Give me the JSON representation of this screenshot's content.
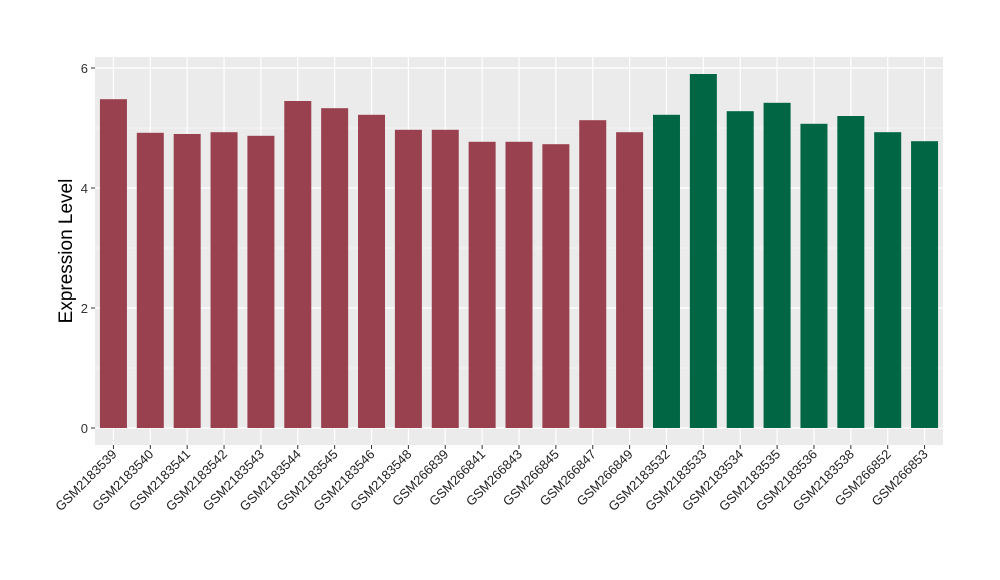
{
  "chart_data": {
    "type": "bar",
    "title": "",
    "xlabel": "",
    "ylabel": "Expression Level",
    "ylim": [
      0,
      6.1
    ],
    "yticks": [
      0,
      2,
      4,
      6
    ],
    "grid": true,
    "categories": [
      "GSM2183539",
      "GSM2183540",
      "GSM2183541",
      "GSM2183542",
      "GSM2183543",
      "GSM2183544",
      "GSM2183545",
      "GSM2183546",
      "GSM2183548",
      "GSM266839",
      "GSM266841",
      "GSM266843",
      "GSM266845",
      "GSM266847",
      "GSM266849",
      "GSM2183532",
      "GSM2183533",
      "GSM2183534",
      "GSM2183535",
      "GSM2183536",
      "GSM2183538",
      "GSM266852",
      "GSM266853"
    ],
    "values": [
      5.48,
      4.92,
      4.9,
      4.93,
      4.87,
      5.45,
      5.33,
      5.22,
      4.97,
      4.97,
      4.77,
      4.77,
      4.73,
      5.13,
      4.93,
      5.22,
      5.9,
      5.28,
      5.42,
      5.07,
      5.2,
      4.93,
      4.78
    ],
    "groups": [
      0,
      0,
      0,
      0,
      0,
      0,
      0,
      0,
      0,
      0,
      0,
      0,
      0,
      0,
      0,
      1,
      1,
      1,
      1,
      1,
      1,
      1,
      1
    ],
    "group_colors": [
      "#9A4150",
      "#006644"
    ]
  }
}
